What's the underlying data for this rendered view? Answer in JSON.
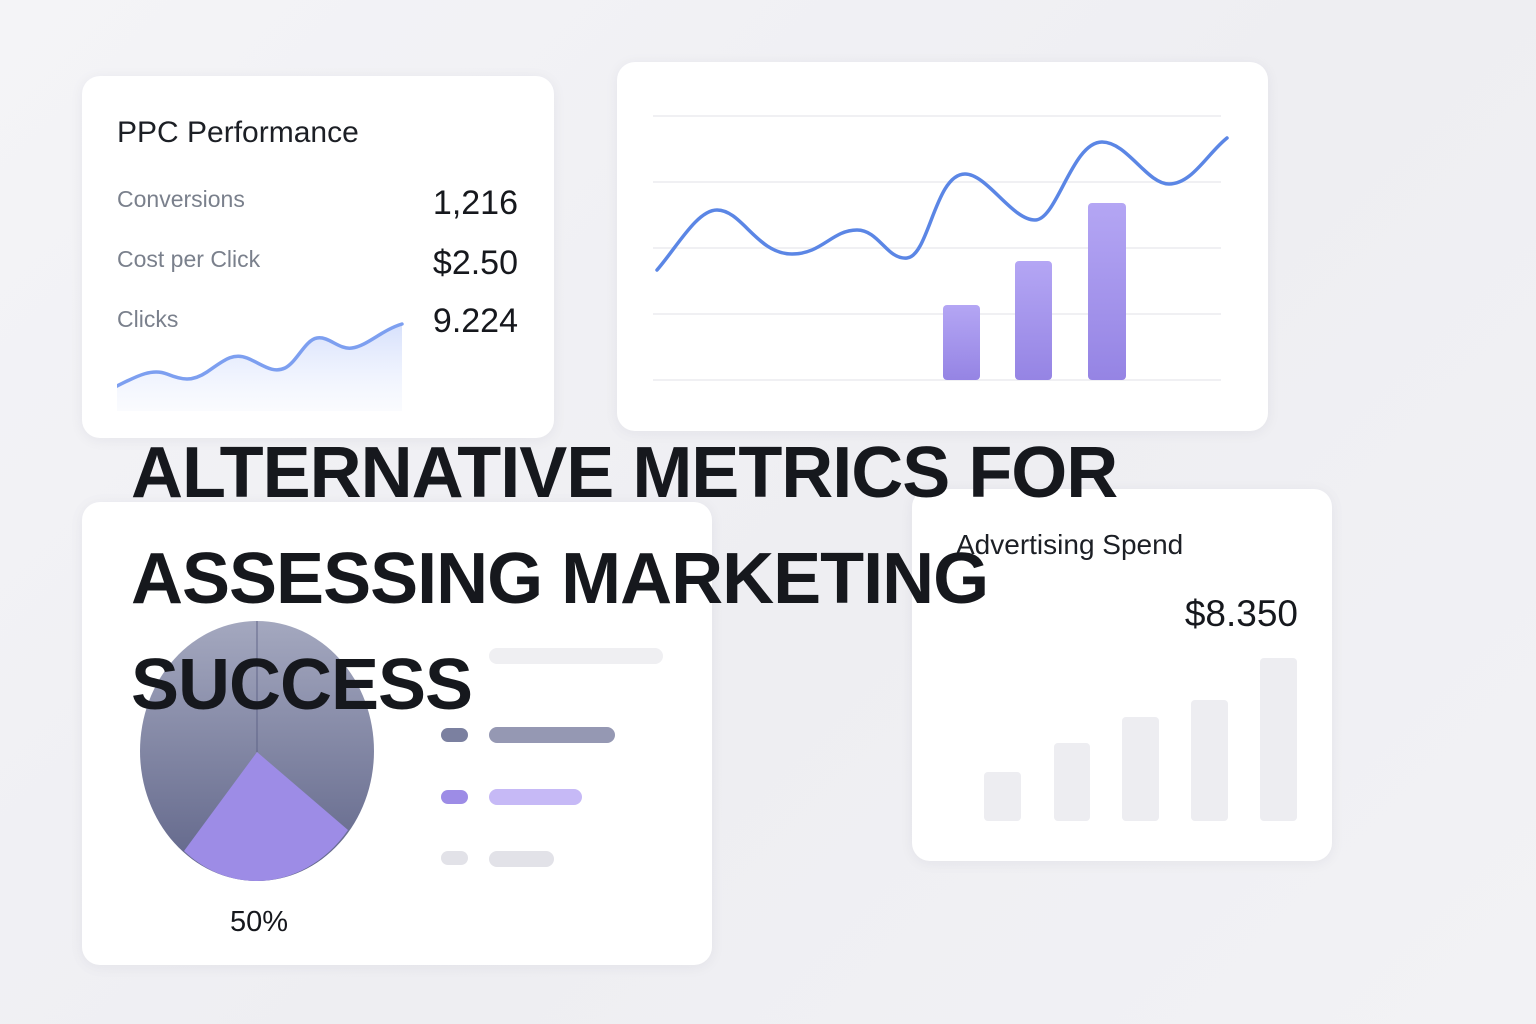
{
  "ppc_card": {
    "title": "PPC Performance",
    "metrics": [
      {
        "label": "Conversions",
        "value": "1,216"
      },
      {
        "label": "Cost per Click",
        "value": "$2.50"
      },
      {
        "label": "Clicks",
        "value": "9.224"
      }
    ]
  },
  "spend_card": {
    "title": "Advertising Spend",
    "value": "$8.350"
  },
  "pie_card": {
    "percent_label": "50%"
  },
  "headline": {
    "line1": "ALTERNATIVE METRICS FOR",
    "line2": "ASSESSING MARKETING",
    "line3": "SUCCESS"
  },
  "colors": {
    "line_blue": "#5b86e5",
    "bar_purple": "#9b8bea",
    "pie_dark": "#6f7496",
    "pie_purple": "#9d8ce6",
    "muted_bar": "#ededf1"
  }
}
